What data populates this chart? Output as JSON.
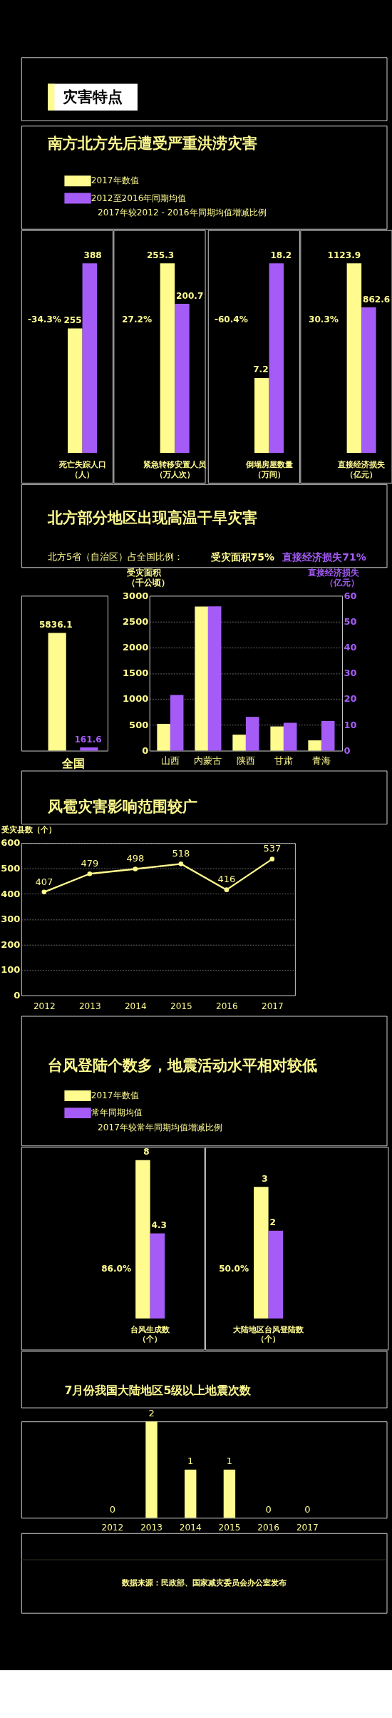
{
  "chart_data": [
    {
      "type": "other",
      "title": "灾害特点"
    },
    {
      "type": "bar",
      "title": "南方北方先后遭受严重洪涝灾害",
      "categories": [
        "死亡失踪人口（人）"
      ],
      "legend": "top",
      "data_labels": true,
      "series": [
        {
          "name": "2017年数值",
          "color": "#fffb8f",
          "values": [
            255
          ]
        },
        {
          "name": "2012至2016年同期均值",
          "color": "#a55cf7",
          "values": [
            388
          ]
        }
      ],
      "annotations": [
        "2017年较2012 - 2016年同期均值增减比例",
        "-34.3%"
      ]
    },
    {
      "type": "bar",
      "categories": [
        "紧急转移安置人员（万人次）"
      ],
      "data_labels": true,
      "series": [
        {
          "color": "#fffb8f",
          "values": [
            255.3
          ]
        },
        {
          "color": "#a55cf7",
          "values": [
            200.7
          ]
        }
      ],
      "annotations": [
        "27.2%"
      ]
    },
    {
      "type": "bar",
      "categories": [
        "倒塌房屋数量（万间）"
      ],
      "data_labels": true,
      "series": [
        {
          "color": "#fffb8f",
          "values": [
            7.2
          ]
        },
        {
          "color": "#a55cf7",
          "values": [
            18.2
          ]
        }
      ],
      "annotations": [
        "-60.4%"
      ]
    },
    {
      "type": "bar",
      "categories": [
        "直接经济损失（亿元）"
      ],
      "data_labels": true,
      "series": [
        {
          "color": "#fffb8f",
          "values": [
            1123.9
          ]
        },
        {
          "color": "#a55cf7",
          "values": [
            862.6
          ]
        }
      ],
      "annotations": [
        "30.3%"
      ]
    },
    {
      "type": "bar",
      "title": "北方部分地区出现高温干旱灾害",
      "subtitle": "北方5省（自治区）占全国比例：",
      "categories": [
        "全国"
      ],
      "data_labels": true,
      "series": [
        {
          "color": "#fffb8f",
          "values": [
            5836.1
          ]
        },
        {
          "color": "#a55cf7",
          "values": [
            161.6
          ]
        }
      ],
      "annotations": [
        "受灾面积75%",
        "直接经济损失71%"
      ]
    },
    {
      "type": "bar",
      "categories": [
        "山西",
        "内蒙古",
        "陕西",
        "甘肃",
        "青海"
      ],
      "ylabel": "受灾面积（千公顷）",
      "y2label": "直接经济损失（亿元）",
      "ylim": [
        0,
        3000
      ],
      "yticks": [
        0,
        500,
        1000,
        1500,
        2000,
        2500,
        3000
      ],
      "y2lim": [
        0,
        60
      ],
      "y2ticks": [
        0,
        10,
        20,
        30,
        40,
        50,
        60
      ],
      "grid": "y",
      "series": [
        {
          "color": "#fffb8f",
          "values": [
            520,
            2790,
            310,
            470,
            200
          ]
        },
        {
          "color": "#a55cf7",
          "values": [
            21.6,
            55.9,
            13.1,
            10.8,
            11.5
          ],
          "axis": "y2"
        }
      ]
    },
    {
      "type": "line",
      "title": "风雹灾害影响范围较广",
      "ylabel": "受灾县数（个）",
      "categories": [
        "2012",
        "2013",
        "2014",
        "2015",
        "2016",
        "2017"
      ],
      "ylim": [
        0,
        600
      ],
      "yticks": [
        0,
        100,
        200,
        300,
        400,
        500,
        600
      ],
      "grid": "y",
      "marker": "circle",
      "data_labels": true,
      "series": [
        {
          "color": "#fffb8f",
          "values": [
            407,
            479,
            498,
            518,
            416,
            537
          ]
        }
      ]
    },
    {
      "type": "bar",
      "title": "台风登陆个数多，地震活动水平相对较低",
      "categories": [
        "台风生成数（个）"
      ],
      "legend": "top left",
      "data_labels": true,
      "series": [
        {
          "name": "2017年数值",
          "color": "#fffb8f",
          "values": [
            8
          ]
        },
        {
          "name": "常年同期均值",
          "color": "#a55cf7",
          "values": [
            4.3
          ]
        }
      ],
      "annotations": [
        "2017年较常年同期均值增减比例",
        "86.0%"
      ]
    },
    {
      "type": "bar",
      "categories": [
        "大陆地区台风登陆数（个）"
      ],
      "data_labels": true,
      "series": [
        {
          "color": "#fffb8f",
          "values": [
            3
          ]
        },
        {
          "color": "#a55cf7",
          "values": [
            2
          ]
        }
      ],
      "annotations": [
        "50.0%"
      ]
    },
    {
      "type": "bar",
      "title": "7月份我国大陆地区5级以上地震次数",
      "categories": [
        "2012",
        "2013",
        "2014",
        "2015",
        "2016",
        "2017"
      ],
      "data_labels": true,
      "series": [
        {
          "color": "#fffb8f",
          "values": [
            0,
            2,
            1,
            1,
            0,
            0
          ]
        }
      ],
      "annotations": [
        "数据来源：民政部、国家减灾委员会办公室发布"
      ]
    }
  ]
}
